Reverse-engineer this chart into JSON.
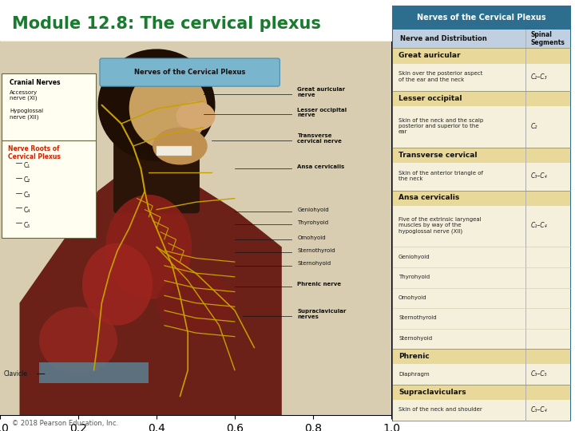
{
  "title": "Module 12.8: The cervical plexus",
  "title_color": "#1a7a2e",
  "top_bar_color": "#2d7a3a",
  "copyright": "© 2018 Pearson Education, Inc.",
  "table_header_bg": "#2d6e8e",
  "table_header_text": "#ffffff",
  "table_header_title": "Nerves of the Cervical Plexus",
  "col1_header": "Nerve and Distribution",
  "col2_header": "Spinal\nSegments",
  "section_bg": "#e8d89a",
  "row_bg": "#f5f0dc",
  "border_color": "#2d6e8e",
  "sections": [
    {
      "name": "Great auricular",
      "rows": [
        {
          "dist": "Skin over the posterior aspect\nof the ear and the neck",
          "seg": "C₂–C₃"
        }
      ]
    },
    {
      "name": "Lesser occipital",
      "rows": [
        {
          "dist": "Skin of the neck and the scalp\nposterior and superior to the\near",
          "seg": "C₂"
        }
      ]
    },
    {
      "name": "Transverse cervical",
      "rows": [
        {
          "dist": "Skin of the anterior triangle of\nthe neck",
          "seg": "C₃–C₄"
        }
      ]
    },
    {
      "name": "Ansa cervicalis",
      "rows": [
        {
          "dist": "Five of the extrinsic laryngeal\nmuscles by way of the\nhypoglossal nerve (XII)",
          "seg": "C₁–C₄"
        },
        {
          "dist": "Geniohyoid",
          "seg": ""
        },
        {
          "dist": "Thyrohyoid",
          "seg": ""
        },
        {
          "dist": "Omohyoid",
          "seg": ""
        },
        {
          "dist": "Sternothyroid",
          "seg": ""
        },
        {
          "dist": "Sternohyoid",
          "seg": ""
        }
      ]
    },
    {
      "name": "Phrenic",
      "rows": [
        {
          "dist": "Diaphragm",
          "seg": "C₃–C₅"
        }
      ]
    },
    {
      "name": "Supraclaviculars",
      "rows": [
        {
          "dist": "Skin of the neck and shoulder",
          "seg": "C₃–C₄"
        }
      ]
    }
  ],
  "left_labels": {
    "cranial_nerves_title": "Cranial Nerves",
    "cranial_nerves": [
      "Accessory\nnerve (XI)",
      "Hypoglossal\nnerve (XII)"
    ],
    "nerve_roots_title": "Nerve Roots of\nCervical Plexus",
    "nerve_roots": [
      "C₁",
      "C₂",
      "C₃",
      "C₄",
      "C₅"
    ],
    "clavicle": "Clavicle"
  },
  "right_labels": [
    {
      "text": "Great auricular\nnerve",
      "bold": true
    },
    {
      "text": "Lesser occipital\nnerve",
      "bold": true
    },
    {
      "text": "Transverse\ncervical nerve",
      "bold": true
    },
    {
      "text": "Ansa cervicalis",
      "bold": true
    },
    {
      "text": "Geniohyoid",
      "bold": false
    },
    {
      "text": "Thyrohyoid",
      "bold": false
    },
    {
      "text": "Omohyoid",
      "bold": false
    },
    {
      "text": "Sternothyroid",
      "bold": false
    },
    {
      "text": "Sternohyoid",
      "bold": false
    },
    {
      "text": "Phrenic nerve",
      "bold": true
    },
    {
      "text": "Supraclavicular\nnerves",
      "bold": true
    }
  ],
  "center_label": "Nerves of the Cervical Plexus",
  "bg_color": "#ffffff",
  "anatomy_bg": "#d8cdb0"
}
